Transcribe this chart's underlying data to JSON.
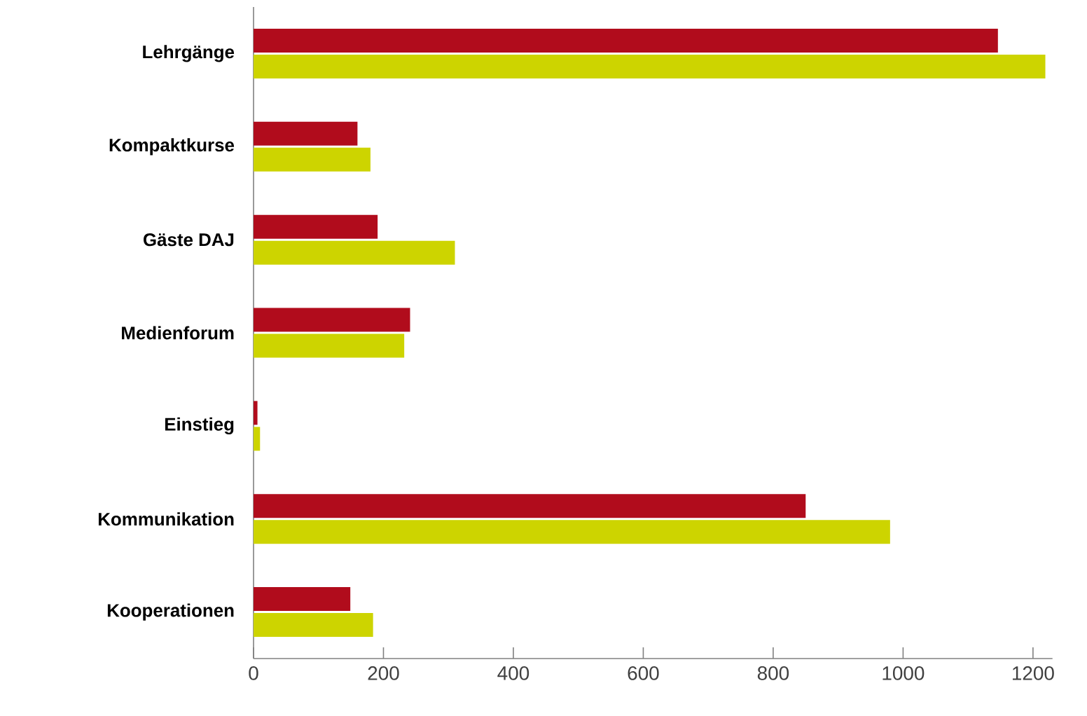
{
  "chart_data": {
    "type": "bar",
    "orientation": "horizontal",
    "categories": [
      "Lehrgänge",
      "Kompaktkurse",
      "Gäste DAJ",
      "Medienforum",
      "Einstieg",
      "Kommunikation",
      "Kooperationen"
    ],
    "series": [
      {
        "color": "#b10c1c",
        "values": [
          1146,
          160,
          191,
          241,
          6,
          850,
          149
        ]
      },
      {
        "color": "#cdd400",
        "values": [
          1219,
          180,
          310,
          232,
          10,
          980,
          184
        ]
      }
    ],
    "xlim": [
      0,
      1230
    ],
    "xticks": [
      0,
      200,
      400,
      600,
      800,
      1000,
      1200
    ],
    "grid": false
  }
}
